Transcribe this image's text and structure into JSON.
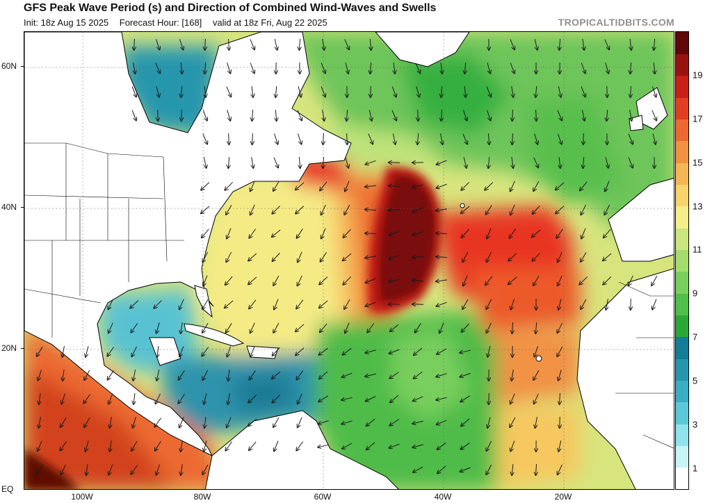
{
  "header": {
    "title": "GFS Peak Wave Period (s) and Direction of Combined Wind-Waves and Swells",
    "init": "Init: 18z Aug 15 2025",
    "forecast_hour": "Forecast Hour: [168]",
    "valid": "valid at 18z Fri, Aug 22 2025",
    "brand": "TROPICALTIDBITS.COM"
  },
  "map": {
    "lat_labels": [
      "60N",
      "40N",
      "20N",
      "EQ"
    ],
    "lon_labels": [
      "100W",
      "80W",
      "60W",
      "40W",
      "20W"
    ],
    "land_color": "#ffffff",
    "arrow_color": "#1a1a1a"
  },
  "colorbar": {
    "labels": [
      "1",
      "3",
      "5",
      "7",
      "9",
      "11",
      "13",
      "15",
      "17",
      "19"
    ],
    "colors": [
      "#ffffff",
      "#c8f4f5",
      "#8fe3ec",
      "#5cc9d8",
      "#3aaec2",
      "#2596ad",
      "#137e96",
      "#2ca836",
      "#4ec04a",
      "#79cf5d",
      "#a4dc6e",
      "#cbe57f",
      "#f5ef8a",
      "#f8d46d",
      "#f5b655",
      "#f19141",
      "#ec6a32",
      "#e23f22",
      "#c81f17",
      "#98120f",
      "#5e0706"
    ]
  }
}
